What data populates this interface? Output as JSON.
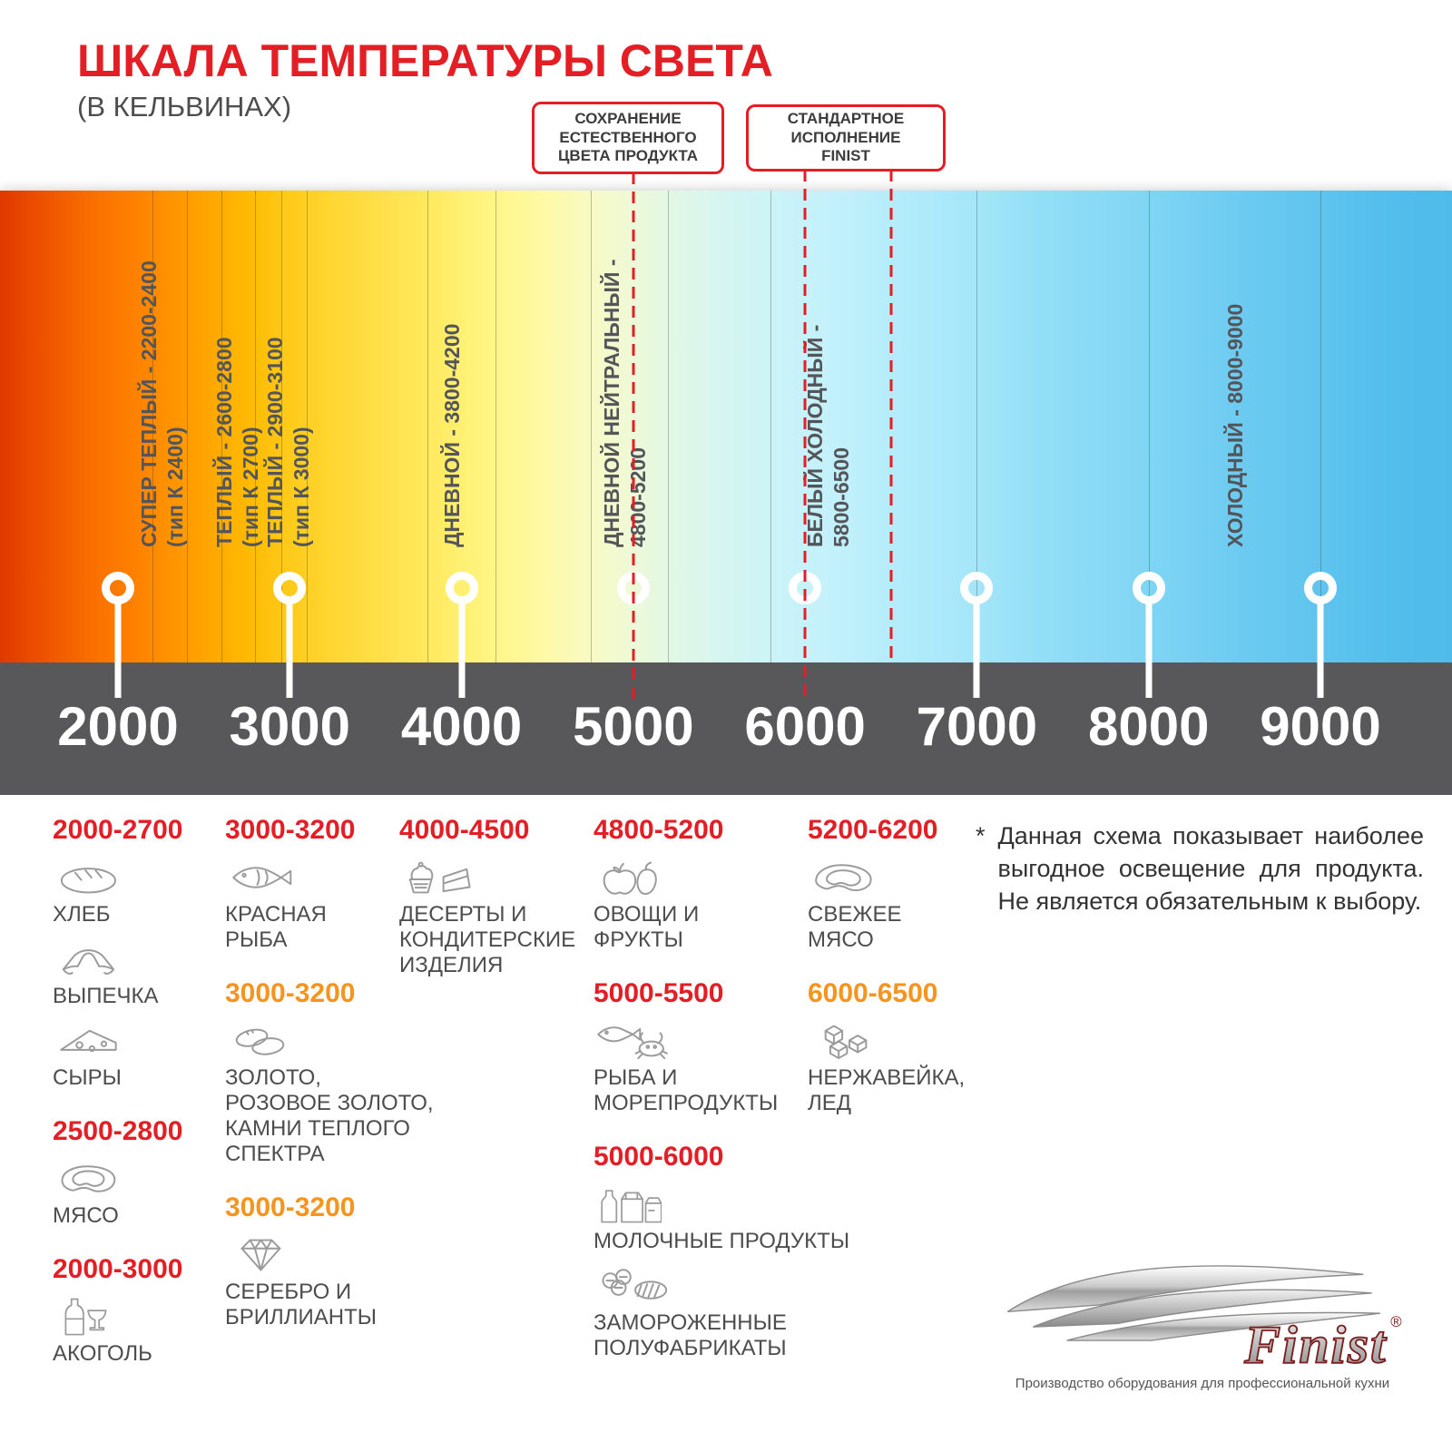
{
  "header": {
    "title": "ШКАЛА ТЕМПЕРАТУРЫ СВЕТА",
    "subtitle": "(В КЕЛЬВИНАХ)"
  },
  "callouts": {
    "natural_color": "СОХРАНЕНИЕ\nЕСТЕСТВЕННОГО\nЦВЕТА ПРОДУКТА",
    "finist_standard": "СТАНДАРТНОЕ\nИСПОЛНЕНИЕ\nFINIST"
  },
  "scale": {
    "unit": "K",
    "k_min": 2000,
    "k_max": 9000,
    "axis_ticks": [
      "2000",
      "3000",
      "4000",
      "5000",
      "6000",
      "7000",
      "8000",
      "9000"
    ],
    "axis_tick_ks": [
      2000,
      3000,
      4000,
      5000,
      6000,
      7000,
      8000,
      9000
    ],
    "marker_ks": [
      2000,
      3000,
      4000,
      5000,
      6000,
      7000,
      8000,
      9000
    ],
    "red_marker_ks": [
      5000,
      6000
    ],
    "red_dashed_ks": [
      5000,
      6000,
      6500
    ],
    "grid_ks": [
      2200,
      2400,
      2600,
      2800,
      2950,
      3100,
      3800,
      4200,
      4750,
      5200,
      5800,
      7000,
      8000,
      9000
    ],
    "zone_labels": [
      {
        "k": 2106,
        "lines": [
          "СУПЕР ТЕПЛЫЙ - 2200-2400",
          "(тип К 2400)"
        ]
      },
      {
        "k": 2544,
        "lines": [
          "ТЕПЛЫЙ - 2600-2800",
          "(тип К 2700)"
        ]
      },
      {
        "k": 2840,
        "lines": [
          "ТЕПЛЫЙ - 2900-3100",
          "(тип К 3000)"
        ]
      },
      {
        "k": 3870,
        "lines": [
          "ДНЕВНОЙ - 3800-4200"
        ]
      },
      {
        "k": 4800,
        "lines": [
          "ДНЕВНОЙ НЕЙТРАЛЬНЫЙ -",
          "4800-5200"
        ]
      },
      {
        "k": 5985,
        "lines": [
          "БЕЛЫЙ ХОЛОДНЫЙ -",
          "5800-6500"
        ]
      },
      {
        "k": 8430,
        "lines": [
          "ХОЛОДНЫЙ - 8000-9000"
        ]
      }
    ]
  },
  "categories": {
    "columns": [
      {
        "groups": [
          {
            "range": "2000-2700",
            "color": "red",
            "items": [
              {
                "icon": "bread-icon",
                "label": "ХЛЕБ"
              },
              {
                "icon": "croissant-icon",
                "label": "ВЫПЕЧКА"
              },
              {
                "icon": "cheese-icon",
                "label": "СЫРЫ"
              }
            ]
          },
          {
            "range": "2500-2800",
            "color": "red",
            "items": [
              {
                "icon": "meat-icon",
                "label": "МЯСО"
              }
            ]
          },
          {
            "range": "2000-3000",
            "color": "red",
            "items": [
              {
                "icon": "alcohol-icon",
                "label": "АКОГОЛЬ"
              }
            ]
          }
        ]
      },
      {
        "groups": [
          {
            "range": "3000-3200",
            "color": "red",
            "items": [
              {
                "icon": "fish-icon",
                "label": "КРАСНАЯ\nРЫБА"
              }
            ]
          },
          {
            "range": "3000-3200",
            "color": "orange",
            "items": [
              {
                "icon": "jewelry-icon",
                "label": "ЗОЛОТО,\nРОЗОВОЕ ЗОЛОТО,\nКАМНИ ТЕПЛОГО\nСПЕКТРА"
              }
            ]
          },
          {
            "range": "3000-3200",
            "color": "orange",
            "items": [
              {
                "icon": "diamond-icon",
                "label": "СЕРЕБРО И\nБРИЛЛИАНТЫ"
              }
            ]
          }
        ]
      },
      {
        "groups": [
          {
            "range": "4000-4500",
            "color": "red",
            "items": [
              {
                "icon": "dessert-icon",
                "label": "ДЕСЕРТЫ И\nКОНДИТЕРСКИЕ\nИЗДЕЛИЯ"
              }
            ]
          }
        ]
      },
      {
        "groups": [
          {
            "range": "4800-5200",
            "color": "red",
            "items": [
              {
                "icon": "vegetables-icon",
                "label": "ОВОЩИ И\nФРУКТЫ"
              }
            ]
          },
          {
            "range": "5000-5500",
            "color": "red",
            "items": [
              {
                "icon": "seafood-icon",
                "label": "РЫБА И\nМОРЕПРОДУКТЫ"
              }
            ]
          },
          {
            "range": "5000-6000",
            "color": "red",
            "items": [
              {
                "icon": "dairy-icon",
                "label": "МОЛОЧНЫЕ ПРОДУКТЫ"
              },
              {
                "icon": "frozen-icon",
                "label": "ЗАМОРОЖЕННЫЕ\nПОЛУФАБРИКАТЫ"
              }
            ]
          }
        ]
      },
      {
        "groups": [
          {
            "range": "5200-6200",
            "color": "red",
            "items": [
              {
                "icon": "fresh-meat-icon",
                "label": "СВЕЖЕЕ\nМЯСО"
              }
            ]
          },
          {
            "range": "6000-6500",
            "color": "orange",
            "items": [
              {
                "icon": "ice-icon",
                "label": "НЕРЖАВЕЙКА,\nЛЕД"
              }
            ]
          }
        ]
      }
    ]
  },
  "note": {
    "mark": "*",
    "text": "Данная схема показывает наиболее выгодное освещение для продукта. Не является обязательным к выбору."
  },
  "logo": {
    "name": "Finist",
    "reg": "®",
    "tagline": "Производство оборудования для профессиональной кухни"
  },
  "colors": {
    "accent_red": "#e31e24",
    "accent_orange": "#f7941e",
    "axis_band": "#58585a"
  }
}
